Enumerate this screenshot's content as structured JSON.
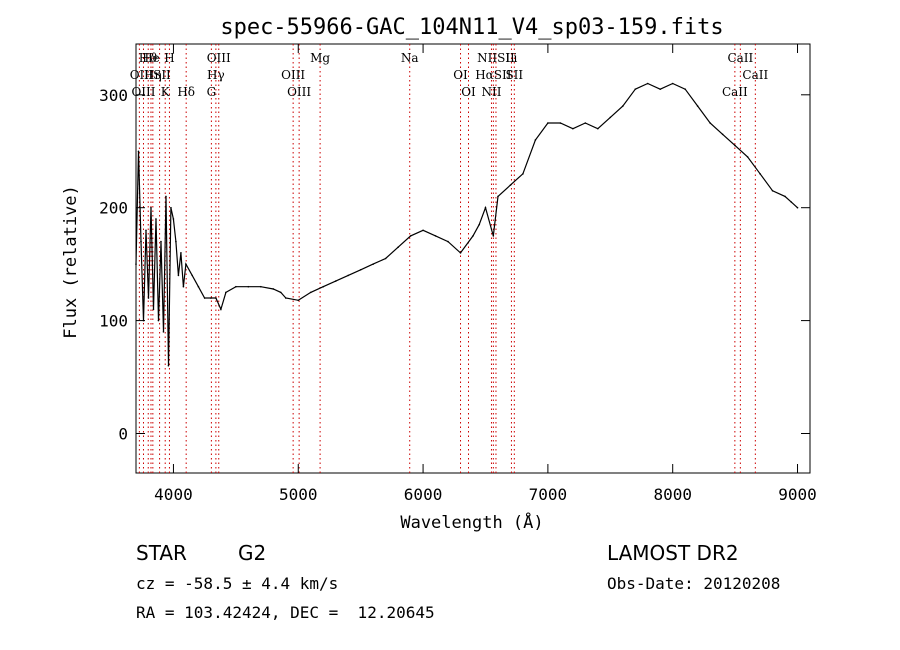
{
  "chart_data": {
    "type": "line",
    "title": "spec-55966-GAC_104N11_V4_sp03-159.fits",
    "xlabel": "Wavelength (Å)",
    "ylabel": "Flux (relative)",
    "xlim": [
      3700,
      9100
    ],
    "ylim": [
      -35,
      345
    ],
    "x_ticks": [
      4000,
      5000,
      6000,
      7000,
      8000,
      9000
    ],
    "y_ticks": [
      0,
      100,
      200,
      300
    ],
    "grid": false,
    "legend": "none",
    "line_color": "#000000",
    "marker_color": "#cc0000",
    "series": [
      {
        "x": [
          3700,
          3720,
          3740,
          3760,
          3780,
          3800,
          3820,
          3840,
          3860,
          3880,
          3900,
          3920,
          3940,
          3960,
          3980,
          4000,
          4020,
          4040,
          4060,
          4080,
          4100,
          4150,
          4200,
          4250,
          4300,
          4340,
          4380,
          4420,
          4500,
          4600,
          4700,
          4800,
          4860,
          4900,
          5000,
          5100,
          5200,
          5300,
          5400,
          5500,
          5600,
          5700,
          5800,
          5900,
          6000,
          6100,
          6200,
          6300,
          6400,
          6450,
          6500,
          6563,
          6600,
          6700,
          6800,
          6900,
          7000,
          7100,
          7200,
          7300,
          7400,
          7500,
          7600,
          7700,
          7800,
          7900,
          8000,
          8100,
          8200,
          8300,
          8400,
          8500,
          8600,
          8700,
          8800,
          8900,
          8950,
          9000
        ],
        "y": [
          150,
          250,
          170,
          100,
          180,
          120,
          200,
          110,
          190,
          100,
          170,
          90,
          210,
          60,
          200,
          190,
          170,
          140,
          160,
          130,
          150,
          140,
          130,
          120,
          120,
          120,
          110,
          125,
          130,
          130,
          130,
          128,
          125,
          120,
          118,
          125,
          130,
          135,
          140,
          145,
          150,
          155,
          165,
          175,
          180,
          175,
          170,
          160,
          175,
          185,
          200,
          175,
          210,
          220,
          230,
          260,
          275,
          275,
          270,
          275,
          270,
          280,
          290,
          305,
          310,
          305,
          310,
          305,
          290,
          275,
          265,
          255,
          245,
          230,
          215,
          210,
          205,
          200
        ]
      }
    ],
    "line_markers": [
      {
        "label": "Hϑ",
        "x": 3798
      },
      {
        "label": "OII",
        "x": 3727
      },
      {
        "label": "OIII",
        "x": 3760
      },
      {
        "label": "He",
        "x": 3820
      },
      {
        "label": "Hη",
        "x": 3835
      },
      {
        "label": "K",
        "x": 3934
      },
      {
        "label": "H",
        "x": 3968
      },
      {
        "label": "ISII",
        "x": 3889
      },
      {
        "label": "Hδ",
        "x": 4102
      },
      {
        "label": "OIII",
        "x": 4363
      },
      {
        "label": "Hγ",
        "x": 4340
      },
      {
        "label": "G",
        "x": 4304
      },
      {
        "label": "Mg",
        "x": 5175
      },
      {
        "label": "OIII",
        "x": 4959
      },
      {
        "label": "OIII",
        "x": 5007
      },
      {
        "label": "Na",
        "x": 5893
      },
      {
        "label": "OI",
        "x": 6300
      },
      {
        "label": "OI",
        "x": 6364
      },
      {
        "label": "NIISII",
        "x": 6584
      },
      {
        "label": "HαSII",
        "x": 6563
      },
      {
        "label": "NII",
        "x": 6548
      },
      {
        "label": "Li",
        "x": 6708
      },
      {
        "label": "SII",
        "x": 6731
      },
      {
        "label": "CaII",
        "x": 8498
      },
      {
        "label": "CaII",
        "x": 8542
      },
      {
        "label": "CaII",
        "x": 8662
      }
    ]
  },
  "info": {
    "object_class": "STAR",
    "subclass": "G2",
    "survey": "LAMOST DR2",
    "redshift": "cz = -58.5 ± 4.4 km/s",
    "obs_date": "Obs-Date: 20120208",
    "coords": "RA = 103.42424, DEC =  12.20645"
  }
}
